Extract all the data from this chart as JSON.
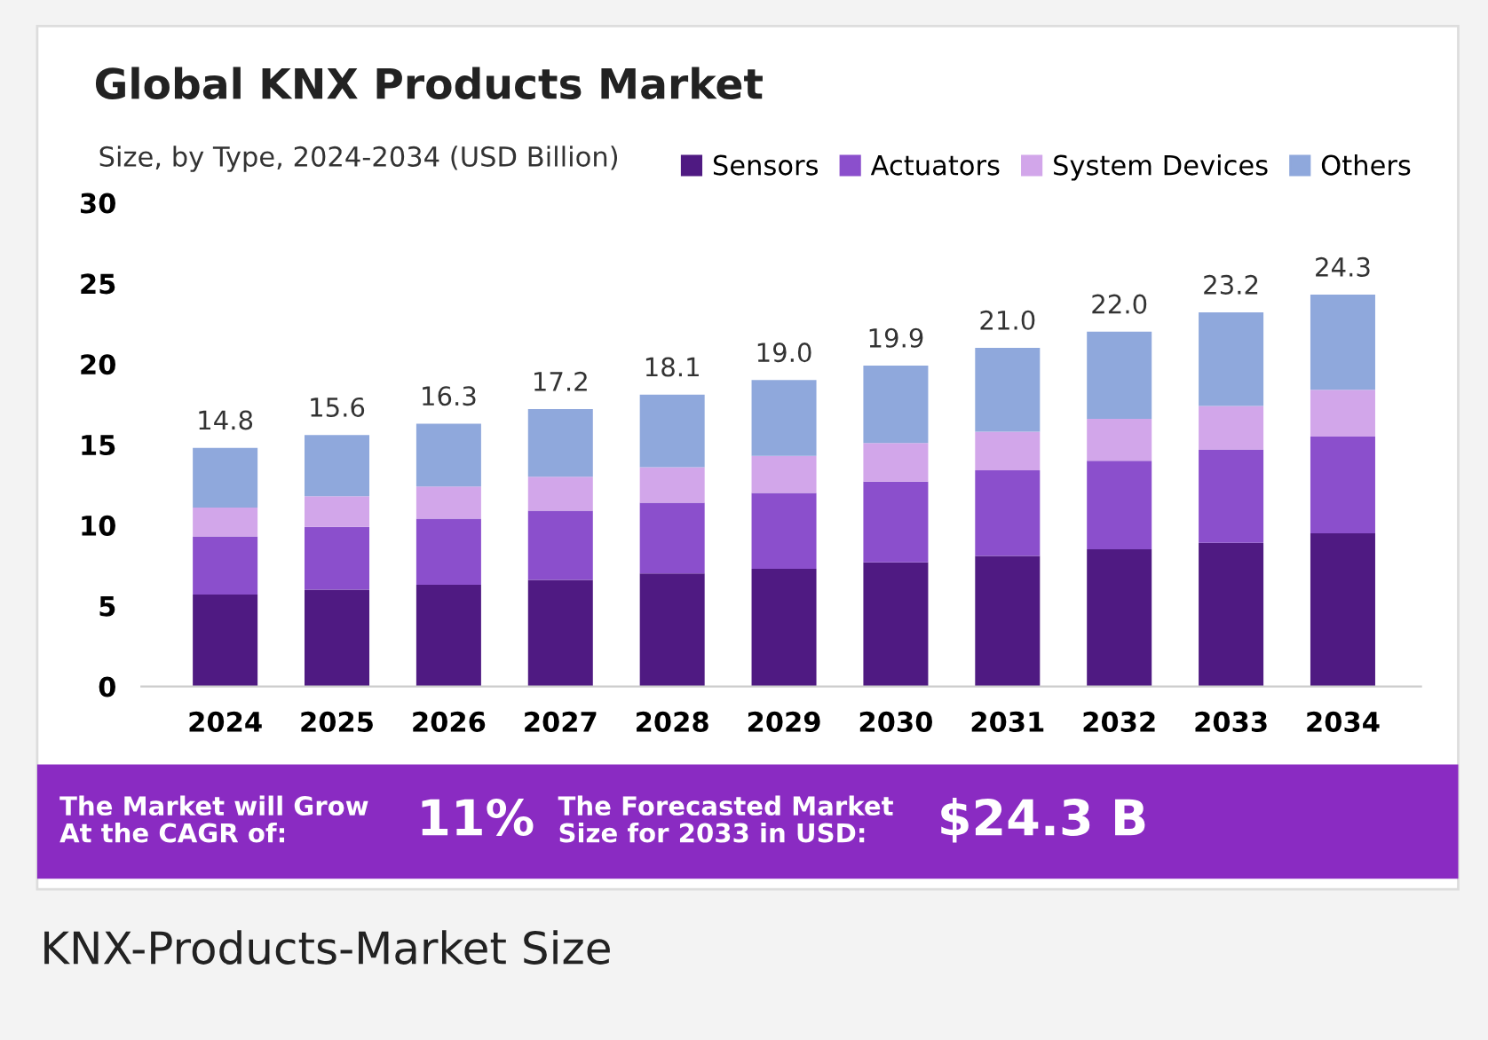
{
  "chart_data": {
    "type": "bar",
    "title": "Global KNX Products Market",
    "subtitle": "Size, by Type, 2024-2034 (USD Billion)",
    "categories": [
      "2024",
      "2025",
      "2026",
      "2027",
      "2028",
      "2029",
      "2030",
      "2031",
      "2032",
      "2033",
      "2034"
    ],
    "stacked": true,
    "series": [
      {
        "name": "Sensors",
        "color": "#4f1a82",
        "values": [
          5.7,
          6.0,
          6.3,
          6.6,
          7.0,
          7.3,
          7.7,
          8.1,
          8.5,
          8.9,
          9.5
        ]
      },
      {
        "name": "Actuators",
        "color": "#8b4fcc",
        "values": [
          3.6,
          3.9,
          4.1,
          4.3,
          4.4,
          4.7,
          5.0,
          5.3,
          5.5,
          5.8,
          6.0
        ]
      },
      {
        "name": "System Devices",
        "color": "#d2a6ea",
        "values": [
          1.8,
          1.9,
          2.0,
          2.1,
          2.2,
          2.3,
          2.4,
          2.4,
          2.6,
          2.7,
          2.9
        ]
      },
      {
        "name": "Others",
        "color": "#8fa8dc",
        "values": [
          3.7,
          3.8,
          3.9,
          4.2,
          4.5,
          4.7,
          4.8,
          5.2,
          5.4,
          5.8,
          5.9
        ]
      }
    ],
    "totals": [
      "14.8",
      "15.6",
      "16.3",
      "17.2",
      "18.1",
      "19.0",
      "19.9",
      "21.0",
      "22.0",
      "23.2",
      "24.3"
    ],
    "ylim": [
      0,
      30
    ],
    "yticks": [
      0,
      5,
      10,
      15,
      20,
      25,
      30
    ],
    "grid": false,
    "legend": "top right",
    "annotations": [
      "The Market will Grow\nAt the CAGR of:",
      "11%",
      "The Forecasted Market\nSize for 2033 in USD:",
      "$24.3 B",
      "KNX-Products-Market Size"
    ]
  }
}
